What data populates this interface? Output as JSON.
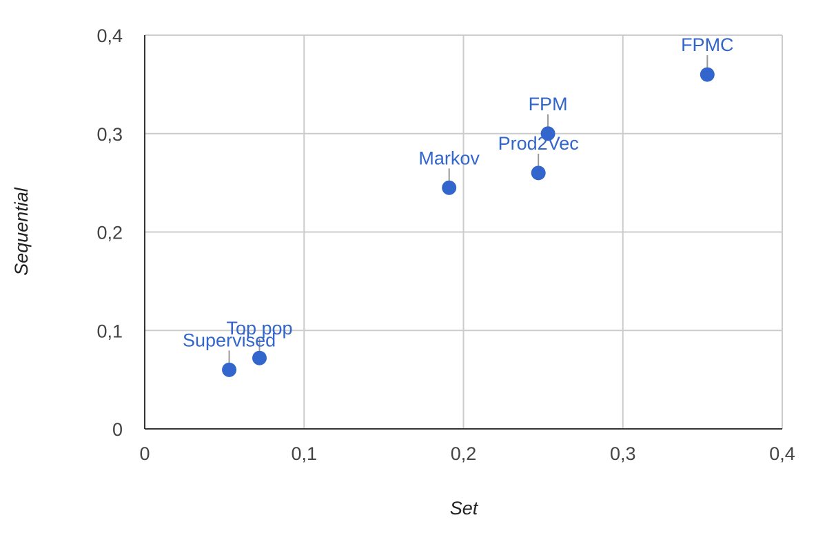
{
  "chart_data": {
    "type": "scatter",
    "title": "",
    "xlabel": "Set",
    "ylabel": "Sequential",
    "xlim": [
      0,
      0.4
    ],
    "ylim": [
      0,
      0.4
    ],
    "x_ticks": [
      "0",
      "0,1",
      "0,2",
      "0,3",
      "0,4"
    ],
    "y_ticks": [
      "0",
      "0,1",
      "0,2",
      "0,3",
      "0,4"
    ],
    "grid": true,
    "legend": "none",
    "point_color": "#3366cc",
    "points": [
      {
        "label": "Supervised",
        "x": 0.053,
        "y": 0.06
      },
      {
        "label": "Top pop",
        "x": 0.072,
        "y": 0.072
      },
      {
        "label": "Markov",
        "x": 0.191,
        "y": 0.245
      },
      {
        "label": "Prod2Vec",
        "x": 0.247,
        "y": 0.26
      },
      {
        "label": "FPM",
        "x": 0.253,
        "y": 0.3
      },
      {
        "label": "FPMC",
        "x": 0.353,
        "y": 0.36
      }
    ]
  }
}
